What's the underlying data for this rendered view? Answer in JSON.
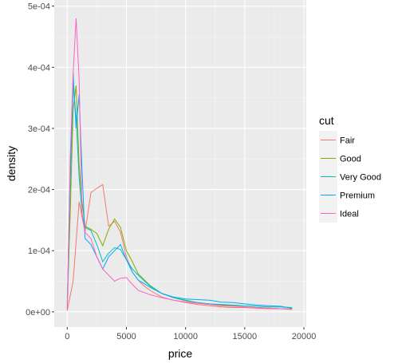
{
  "chart_data": {
    "type": "line",
    "title": "",
    "xlabel": "price",
    "ylabel": "density",
    "xlim": [
      -1100,
      20200
    ],
    "ylim": [
      -2.5e-05,
      0.00051
    ],
    "x_ticks": [
      0,
      5000,
      10000,
      15000,
      20000
    ],
    "x_tick_labels": [
      "0",
      "5000",
      "10000",
      "15000",
      "20000"
    ],
    "y_ticks": [
      0,
      0.0001,
      0.0002,
      0.0003,
      0.0004,
      0.0005
    ],
    "y_tick_labels": [
      "0e+00",
      "1e-04",
      "2e-04",
      "3e-04",
      "4e-04",
      "5e-04"
    ],
    "grid": true,
    "legend": {
      "title": "cut",
      "placement": "right"
    },
    "series": [
      {
        "name": "Fair",
        "color": "#F8766D",
        "x": [
          0,
          500,
          1000,
          1500,
          2000,
          2500,
          3000,
          3500,
          4000,
          4500,
          5000,
          5500,
          6000,
          6500,
          7000,
          8000,
          9000,
          10000,
          11000,
          12000,
          13000,
          14000,
          15000,
          16000,
          17000,
          18000,
          19000
        ],
        "y": [
          2e-06,
          5e-05,
          0.00018,
          0.00013,
          0.000195,
          0.000202,
          0.000208,
          0.00014,
          0.000148,
          0.00013,
          9e-05,
          6.5e-05,
          5.2e-05,
          4.2e-05,
          3.5e-05,
          2.4e-05,
          1.9e-05,
          1.5e-05,
          1.2e-05,
          1e-05,
          8e-06,
          7e-06,
          7e-06,
          6e-06,
          5e-06,
          5e-06,
          4e-06
        ]
      },
      {
        "name": "Good",
        "color": "#7CAE00",
        "x": [
          0,
          250,
          500,
          750,
          1000,
          1250,
          1500,
          2000,
          2500,
          3000,
          3500,
          4000,
          4500,
          5000,
          5500,
          6000,
          7000,
          8000,
          9000,
          10000,
          11000,
          12000,
          13000,
          14000,
          15000,
          16000,
          17000,
          18000,
          19000
        ],
        "y": [
          5e-06,
          0.00016,
          0.00033,
          0.00037,
          0.00024,
          0.00018,
          0.00014,
          0.000135,
          0.000128,
          0.000108,
          0.000135,
          0.000152,
          0.000138,
          0.0001,
          8.2e-05,
          6.2e-05,
          4.3e-05,
          3e-05,
          2.3e-05,
          1.8e-05,
          1.5e-05,
          1.3e-05,
          1.1e-05,
          1e-05,
          8e-06,
          7e-06,
          6e-06,
          5e-06,
          5e-06
        ]
      },
      {
        "name": "Very Good",
        "color": "#00BFC4",
        "x": [
          0,
          250,
          500,
          750,
          1000,
          1250,
          1500,
          2000,
          2500,
          3000,
          3500,
          4000,
          4500,
          5000,
          5500,
          6000,
          7000,
          8000,
          9000,
          10000,
          11000,
          12000,
          13000,
          14000,
          15000,
          16000,
          17000,
          18000,
          19000
        ],
        "y": [
          1e-05,
          0.00021,
          0.00037,
          0.00032,
          0.00022,
          0.00016,
          0.000138,
          0.000133,
          0.00011,
          8.2e-05,
          9.6e-05,
          0.000105,
          0.000102,
          8.5e-05,
          7e-05,
          6e-05,
          4.2e-05,
          3e-05,
          2.3e-05,
          1.9e-05,
          1.5e-05,
          1.3e-05,
          1.2e-05,
          1.1e-05,
          1e-05,
          9e-06,
          8e-06,
          8e-06,
          7e-06
        ]
      },
      {
        "name": "Premium",
        "color": "#00A9FF",
        "x": [
          0,
          250,
          500,
          750,
          1000,
          1250,
          1500,
          2000,
          2500,
          3000,
          3500,
          4000,
          4500,
          5000,
          5500,
          6000,
          7000,
          8000,
          9000,
          10000,
          11000,
          12000,
          13000,
          14000,
          15000,
          16000,
          17000,
          18000,
          19000
        ],
        "y": [
          1.5e-05,
          0.00022,
          0.00039,
          0.0003,
          0.000355,
          0.00023,
          0.00012,
          0.00011,
          9e-05,
          7e-05,
          9e-05,
          0.0001,
          0.00011,
          8.5e-05,
          6.5e-05,
          5.2e-05,
          4e-05,
          3e-05,
          2.4e-05,
          2.1e-05,
          2e-05,
          1.9e-05,
          1.6e-05,
          1.5e-05,
          1.3e-05,
          1.1e-05,
          1e-05,
          9e-06,
          6e-06
        ]
      },
      {
        "name": "Ideal",
        "color": "#FF61C3",
        "x": [
          0,
          250,
          500,
          750,
          1000,
          1250,
          1500,
          2000,
          2500,
          3000,
          3500,
          4000,
          4500,
          5000,
          5500,
          6000,
          7000,
          8000,
          9000,
          10000,
          11000,
          12000,
          13000,
          14000,
          15000,
          16000,
          17000,
          18000,
          19000
        ],
        "y": [
          2e-06,
          0.00025,
          0.00039,
          0.00048,
          0.00038,
          0.00016,
          0.00013,
          0.00012,
          9e-05,
          7e-05,
          6e-05,
          5e-05,
          5.5e-05,
          5.6e-05,
          4.5e-05,
          3.5e-05,
          2.8e-05,
          2.3e-05,
          1.9e-05,
          1.6e-05,
          1.4e-05,
          1.2e-05,
          1e-05,
          9e-06,
          8e-06,
          7e-06,
          6e-06,
          5e-06,
          4e-06
        ]
      }
    ]
  }
}
